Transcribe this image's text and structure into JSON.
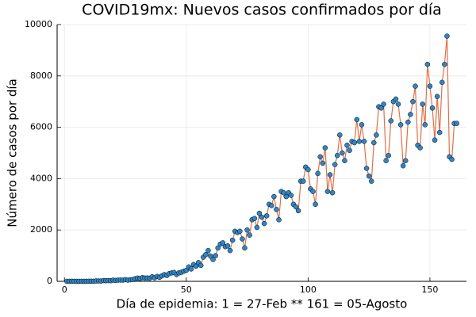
{
  "chart_data": {
    "type": "scatter",
    "title": "COVID19mx: Nuevos casos confirmados por día",
    "xlabel": "Día de epidemia: 1 = 27-Feb ** 161 = 05-Agosto",
    "ylabel": "Número de casos por día",
    "line_color": "#e26f46",
    "marker_color": "#2f86c6",
    "xlim": [
      -3,
      165
    ],
    "ylim": [
      0,
      10000
    ],
    "xticks": [
      0,
      50,
      100,
      150
    ],
    "yticks": [
      0,
      2000,
      4000,
      6000,
      8000,
      10000
    ],
    "grid": true,
    "x": [
      1,
      2,
      3,
      4,
      5,
      6,
      7,
      8,
      9,
      10,
      11,
      12,
      13,
      14,
      15,
      16,
      17,
      18,
      19,
      20,
      21,
      22,
      23,
      24,
      25,
      26,
      27,
      28,
      29,
      30,
      31,
      32,
      33,
      34,
      35,
      36,
      37,
      38,
      39,
      40,
      41,
      42,
      43,
      44,
      45,
      46,
      47,
      48,
      49,
      50,
      51,
      52,
      53,
      54,
      55,
      56,
      57,
      58,
      59,
      60,
      61,
      62,
      63,
      64,
      65,
      66,
      67,
      68,
      69,
      70,
      71,
      72,
      73,
      74,
      75,
      76,
      77,
      78,
      79,
      80,
      81,
      82,
      83,
      84,
      85,
      86,
      87,
      88,
      89,
      90,
      91,
      92,
      93,
      94,
      95,
      96,
      97,
      98,
      99,
      100,
      101,
      102,
      103,
      104,
      105,
      106,
      107,
      108,
      109,
      110,
      111,
      112,
      113,
      114,
      115,
      116,
      117,
      118,
      119,
      120,
      121,
      122,
      123,
      124,
      125,
      126,
      127,
      128,
      129,
      130,
      131,
      132,
      133,
      134,
      135,
      136,
      137,
      138,
      139,
      140,
      141,
      142,
      143,
      144,
      145,
      146,
      147,
      148,
      149,
      150,
      151,
      152,
      153,
      154,
      155,
      156,
      157,
      158,
      159,
      160,
      161
    ],
    "values": [
      1,
      0,
      2,
      0,
      1,
      1,
      1,
      0,
      2,
      4,
      4,
      5,
      14,
      15,
      12,
      29,
      26,
      29,
      25,
      46,
      36,
      48,
      51,
      46,
      65,
      48,
      62,
      69,
      103,
      126,
      111,
      145,
      128,
      132,
      124,
      178,
      137,
      190,
      158,
      212,
      262,
      228,
      301,
      329,
      345,
      264,
      329,
      353,
      396,
      427,
      560,
      480,
      653,
      590,
      730,
      620,
      940,
      1040,
      1200,
      980,
      850,
      1000,
      1300,
      1450,
      1500,
      1350,
      1380,
      1200,
      1600,
      1950,
      1900,
      1950,
      1650,
      1300,
      2000,
      1800,
      2400,
      2450,
      2100,
      2650,
      2500,
      2250,
      2550,
      3000,
      2950,
      3300,
      2800,
      2400,
      3500,
      3450,
      3300,
      3450,
      3350,
      3000,
      2900,
      2750,
      3900,
      3900,
      4450,
      4350,
      3600,
      3500,
      3000,
      4200,
      4850,
      4600,
      5200,
      3500,
      4150,
      3450,
      4550,
      4900,
      5700,
      5000,
      4700,
      5300,
      5100,
      5450,
      5400,
      6300,
      5450,
      6100,
      5450,
      4400,
      4100,
      3900,
      5400,
      5700,
      6800,
      6750,
      6900,
      4700,
      4900,
      6250,
      7000,
      7100,
      6900,
      6100,
      4500,
      4700,
      6200,
      6500,
      7000,
      7600,
      5300,
      5200,
      6900,
      6100,
      8450,
      7600,
      6750,
      5500,
      7200,
      5800,
      7750,
      8450,
      9550,
      4850,
      4750,
      6150,
      6150
    ]
  }
}
